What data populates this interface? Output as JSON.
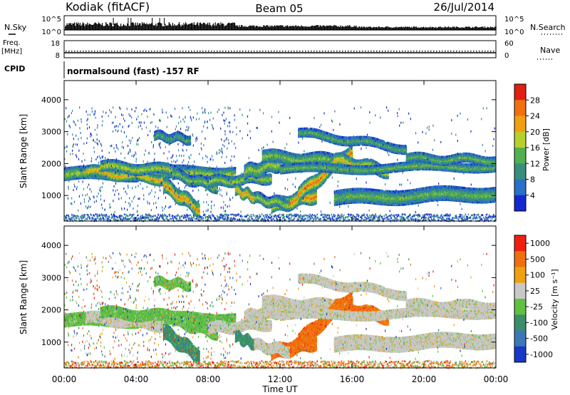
{
  "header": {
    "station": "Kodiak (fitACF)",
    "beam": "Beam 05",
    "date": "26/Jul/2014"
  },
  "top_panels": {
    "nsky_label": "N.Sky",
    "nsky_ticks": [
      "10^5",
      "10^0"
    ],
    "nsearch_label": "N.Search",
    "nsearch_ticks": [
      "10^5",
      "10^0"
    ],
    "freq_label_line1": "Freq.",
    "freq_label_line2": "[MHz]",
    "freq_ticks": [
      "18",
      "8"
    ],
    "nave_label": "Nave",
    "nave_ticks": [
      "60",
      "0"
    ],
    "cpid_label": "CPID",
    "cpid_text": "normalsound (fast) -157 RF"
  },
  "chart_data": [
    {
      "type": "heatmap",
      "name": "power",
      "ylabel": "Slant Range [km]",
      "xlabel": "Time UT",
      "yticks": [
        "1000",
        "2000",
        "3000",
        "4000"
      ],
      "ylim": [
        200,
        4600
      ],
      "xlim_hours": [
        0,
        24
      ],
      "colorbar_label": "Power [dB]",
      "colorbar_ticks": [
        "4",
        "8",
        "12",
        "16",
        "20",
        "24",
        "28"
      ],
      "colorbar_colors": [
        "#1428d0",
        "#2870c8",
        "#3a8f7a",
        "#52b050",
        "#b8d02c",
        "#f0a010",
        "#f07010",
        "#e02010"
      ]
    },
    {
      "type": "heatmap",
      "name": "velocity",
      "ylabel": "Slant Range [km]",
      "xlabel": "Time UT",
      "yticks": [
        "1000",
        "2000",
        "3000",
        "4000"
      ],
      "ylim": [
        200,
        4600
      ],
      "xlim_hours": [
        0,
        24
      ],
      "colorbar_label": "Velocity [m s⁻¹]",
      "colorbar_ticks": [
        "1000",
        "500",
        "100",
        "25",
        "-25",
        "-100",
        "-500",
        "-1000"
      ],
      "colorbar_colors": [
        "#1838c8",
        "#3c78b8",
        "#3a8f6a",
        "#60c040",
        "#c8c8c8",
        "#f0a010",
        "#f07010",
        "#f02010"
      ]
    }
  ],
  "x_axis": {
    "ticks": [
      "00:00",
      "04:00",
      "08:00",
      "12:00",
      "16:00",
      "20:00",
      "00:00"
    ],
    "label": "Time UT"
  }
}
